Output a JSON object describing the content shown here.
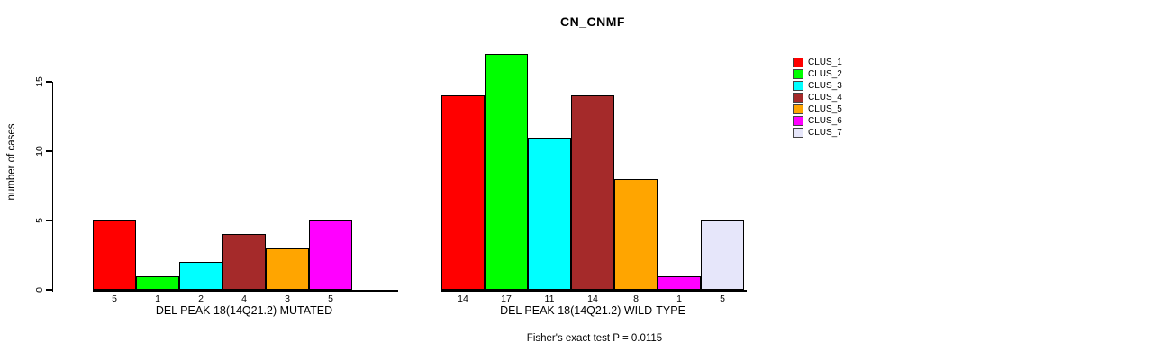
{
  "chart_data": {
    "type": "bar",
    "title": "CN_CNMF",
    "ylabel": "number of cases",
    "ylim": [
      0,
      17
    ],
    "yticks": [
      0,
      5,
      10,
      15
    ],
    "grid": false,
    "legend_position": "right",
    "legend": [
      {
        "label": "CLUS_1",
        "color": "#FF0000"
      },
      {
        "label": "CLUS_2",
        "color": "#00FF00"
      },
      {
        "label": "CLUS_3",
        "color": "#00FFFF"
      },
      {
        "label": "CLUS_4",
        "color": "#A52A2A"
      },
      {
        "label": "CLUS_5",
        "color": "#FFA500"
      },
      {
        "label": "CLUS_6",
        "color": "#FF00FF"
      },
      {
        "label": "CLUS_7",
        "color": "#E6E6FA"
      }
    ],
    "groups": [
      {
        "xlabel": "DEL PEAK 18(14Q21.2) MUTATED",
        "values": [
          5,
          1,
          2,
          4,
          3,
          5,
          0
        ]
      },
      {
        "xlabel": "DEL PEAK 18(14Q21.2) WILD-TYPE",
        "values": [
          14,
          17,
          11,
          14,
          8,
          1,
          5
        ]
      }
    ],
    "annotation": "Fisher's exact test P = 0.0115"
  }
}
